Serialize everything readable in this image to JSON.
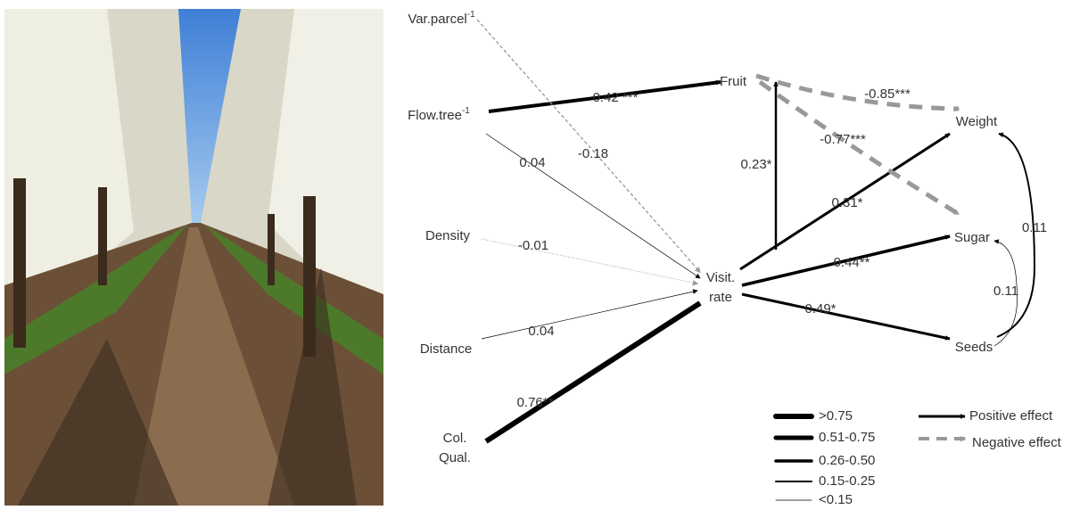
{
  "nodes": [
    {
      "lines": [
        "Var.parcel"
      ],
      "sup": "-1"
    },
    {
      "lines": [
        "Flow.tree"
      ],
      "sup": "-1"
    },
    {
      "lines": [
        "Density"
      ]
    },
    {
      "lines": [
        "Distance"
      ]
    },
    {
      "lines": [
        "Col.",
        "Qual."
      ]
    },
    {
      "lines": [
        "Visit.",
        "rate"
      ]
    },
    {
      "lines": [
        "Fruit"
      ]
    },
    {
      "lines": [
        "Weight"
      ]
    },
    {
      "lines": [
        "Sugar"
      ]
    },
    {
      "lines": [
        "Seeds"
      ]
    }
  ],
  "edges": [
    {
      "label": "0.42 ***"
    },
    {
      "label": "-0.18"
    },
    {
      "label": "0.04"
    },
    {
      "label": "-0.01"
    },
    {
      "label": "0.04"
    },
    {
      "label": "0.76**"
    },
    {
      "label": "0.23*"
    },
    {
      "label": "0.31*"
    },
    {
      "label": "0.44**"
    },
    {
      "label": "0.49*"
    },
    {
      "label": "-0.85***"
    },
    {
      "label": "-0.77***"
    },
    {
      "label": "0.11"
    },
    {
      "label": "0.11"
    }
  ],
  "legend": {
    "strength": [
      ">0.75",
      "0.51-0.75",
      "0.26-0.50",
      "0.15-0.25",
      "<0.15"
    ],
    "effect": [
      "Positive effect",
      "Negative effect"
    ]
  }
}
